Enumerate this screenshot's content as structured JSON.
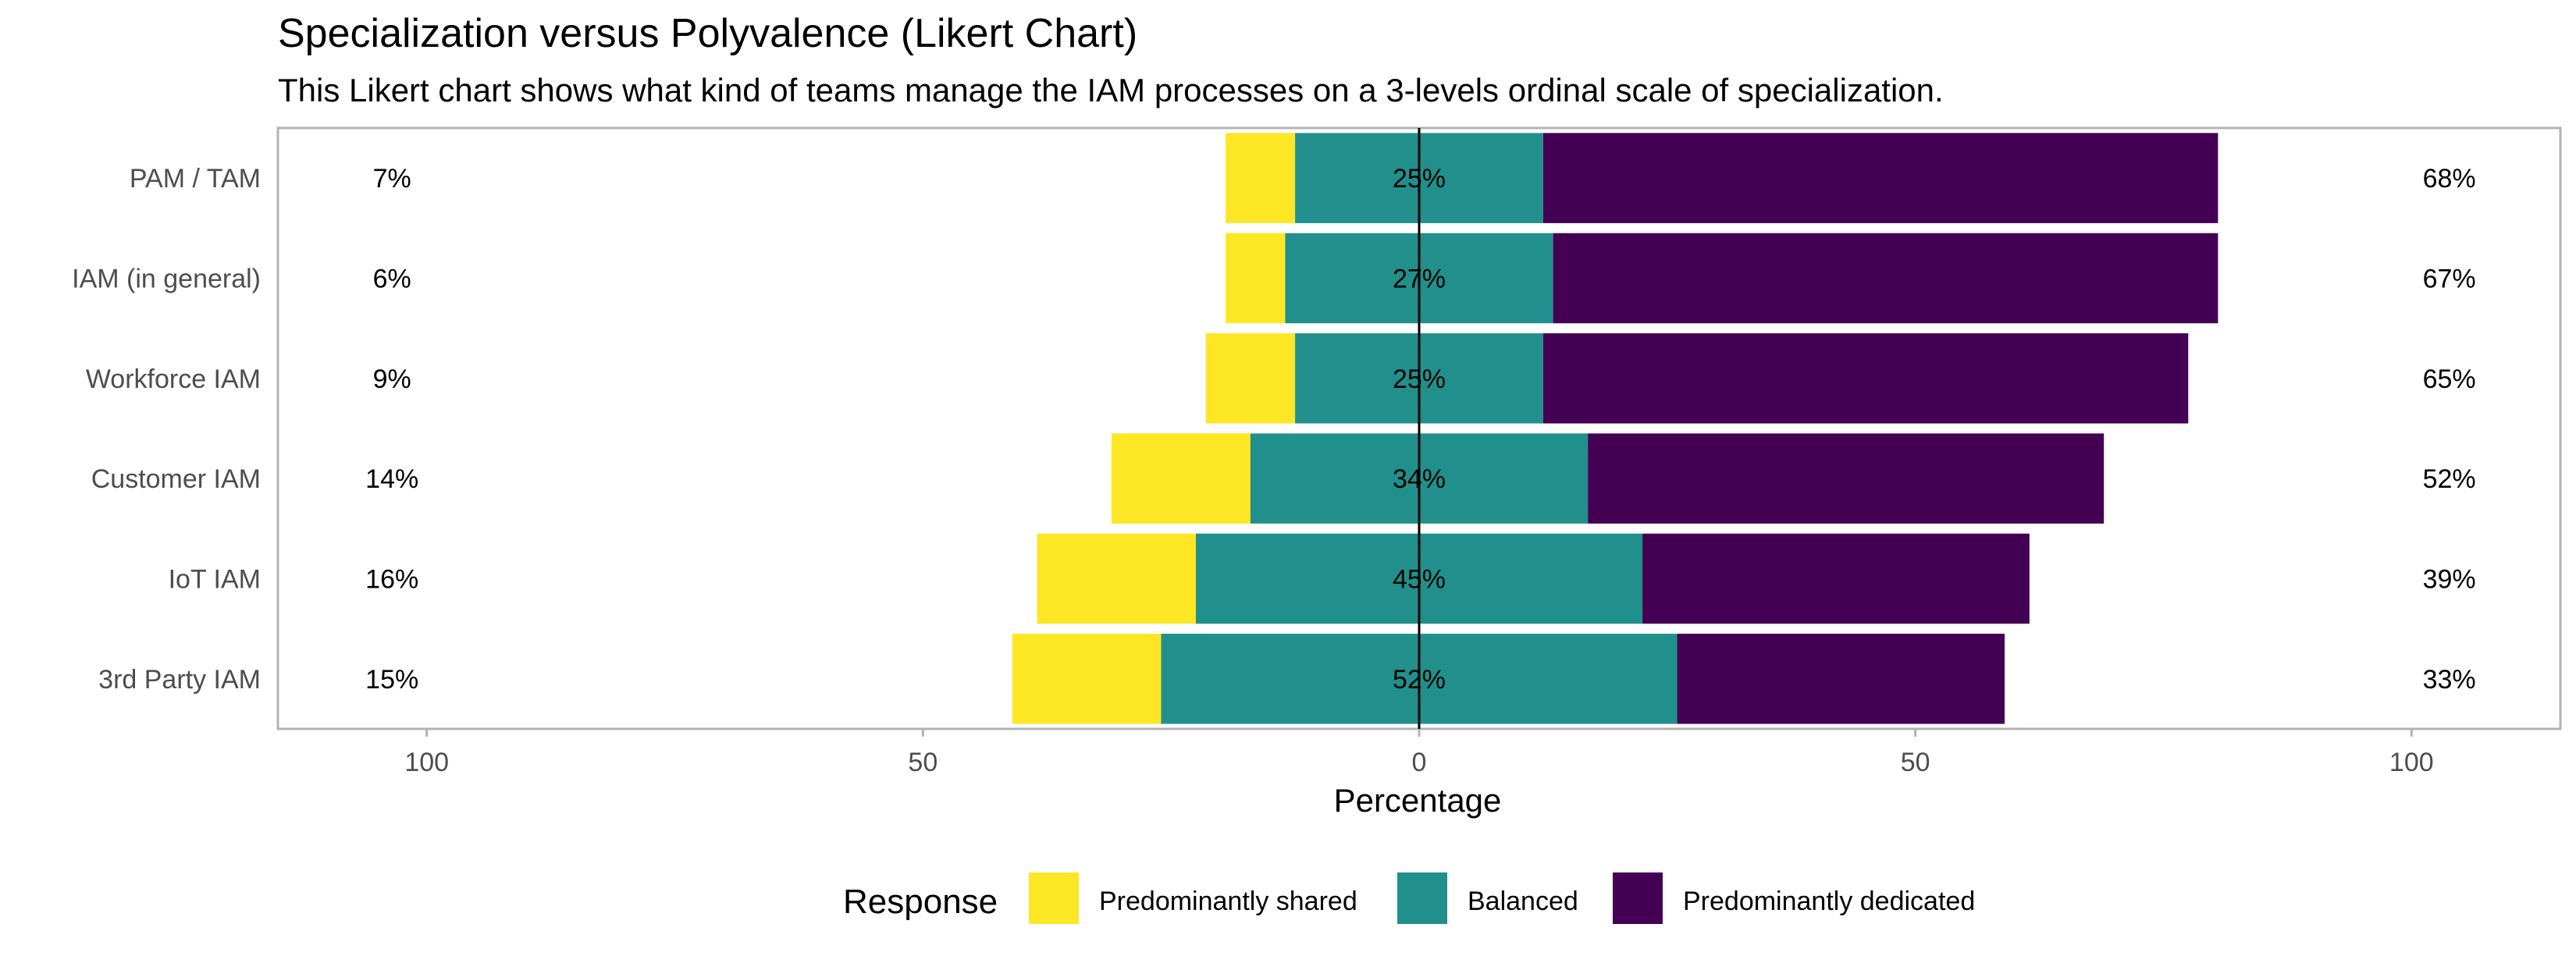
{
  "chart_data": {
    "type": "bar",
    "subtype": "diverging-likert-horizontal",
    "title": "Specialization versus Polyvalence (Likert Chart)",
    "subtitle": "This Likert chart shows what kind of teams manage the IAM processes on a 3-levels ordinal scale of specialization.",
    "xlabel": "Percentage",
    "ylabel": "",
    "xlim": [
      -115,
      115
    ],
    "x_ticks": [
      {
        "value": -100,
        "label": "100"
      },
      {
        "value": -50,
        "label": "50"
      },
      {
        "value": 0,
        "label": "0"
      },
      {
        "value": 50,
        "label": "50"
      },
      {
        "value": 100,
        "label": "100"
      }
    ],
    "grid": false,
    "panel_border": true,
    "legend": {
      "placement": "bottom",
      "title": "Response",
      "entries": [
        {
          "key": "shared",
          "label": "Predominantly shared",
          "color": "#FDE725"
        },
        {
          "key": "balanced",
          "label": "Balanced",
          "color": "#21908C"
        },
        {
          "key": "dedicated",
          "label": "Predominantly dedicated",
          "color": "#440154"
        }
      ]
    },
    "categories": [
      "PAM / TAM",
      "IAM (in general)",
      "Workforce IAM",
      "Customer IAM",
      "IoT IAM",
      "3rd Party IAM"
    ],
    "series": [
      {
        "name": "Predominantly shared",
        "color": "#FDE725",
        "values": [
          7,
          6,
          9,
          14,
          16,
          15
        ]
      },
      {
        "name": "Balanced",
        "color": "#21908C",
        "values": [
          25,
          27,
          25,
          34,
          45,
          52
        ]
      },
      {
        "name": "Predominantly dedicated",
        "color": "#440154",
        "values": [
          68,
          67,
          65,
          52,
          39,
          33
        ]
      }
    ],
    "left_labels": [
      "7%",
      "6%",
      "9%",
      "14%",
      "16%",
      "15%"
    ],
    "center_labels": [
      "25%",
      "27%",
      "25%",
      "34%",
      "45%",
      "52%"
    ],
    "right_labels": [
      "68%",
      "67%",
      "65%",
      "52%",
      "39%",
      "33%"
    ],
    "colors": {
      "zero_line": "#000000",
      "panel_border": "#b3b3b3",
      "axis_text": "#4d4d4d"
    }
  }
}
